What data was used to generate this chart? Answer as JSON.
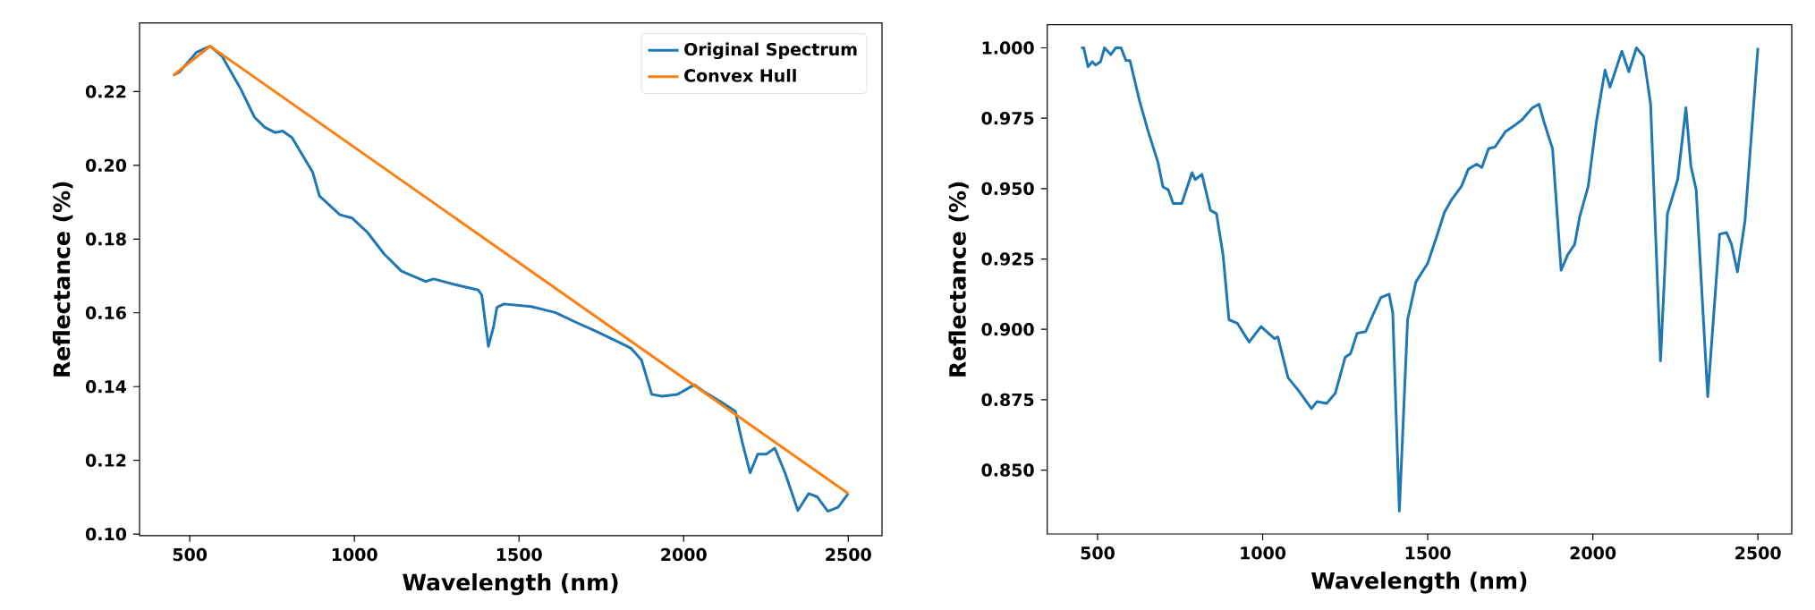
{
  "chart_data": [
    {
      "type": "line",
      "xlabel": "Wavelength (nm)",
      "ylabel": "Reflectance (%)",
      "legend": "top right",
      "xlim": [
        347.5,
        2602.5
      ],
      "ylim": [
        0.0996,
        0.2386
      ],
      "xticks": [
        500,
        1000,
        1500,
        2000,
        2500
      ],
      "yticks": [
        {
          "value": 0.1,
          "label": "0.10"
        },
        {
          "value": 0.12,
          "label": "0.12"
        },
        {
          "value": 0.14,
          "label": "0.14"
        },
        {
          "value": 0.16,
          "label": "0.16"
        },
        {
          "value": 0.18,
          "label": "0.18"
        },
        {
          "value": 0.2,
          "label": "0.20"
        },
        {
          "value": 0.22,
          "label": "0.22"
        }
      ],
      "series": [
        {
          "name": "Original Spectrum",
          "color": "#1f77b4",
          "x": [
            450,
            469,
            521,
            562,
            598,
            656,
            697,
            728,
            759,
            782,
            811,
            842,
            873,
            894,
            956,
            993,
            1039,
            1091,
            1143,
            1216,
            1241,
            1309,
            1376,
            1387,
            1407,
            1423,
            1433,
            1454,
            1537,
            1610,
            1674,
            1734,
            1809,
            1840,
            1872,
            1903,
            1934,
            1981,
            2033,
            2059,
            2111,
            2157,
            2178,
            2202,
            2225,
            2251,
            2277,
            2308,
            2347,
            2380,
            2406,
            2438,
            2469,
            2500
          ],
          "values": [
            0.2244,
            0.2253,
            0.2307,
            0.2323,
            0.2296,
            0.2205,
            0.213,
            0.2103,
            0.2089,
            0.2093,
            0.2075,
            0.2028,
            0.1982,
            0.1917,
            0.1866,
            0.1857,
            0.1819,
            0.1759,
            0.1713,
            0.1685,
            0.1692,
            0.1676,
            0.1662,
            0.1648,
            0.1509,
            0.1564,
            0.1615,
            0.1624,
            0.1617,
            0.1601,
            0.1574,
            0.155,
            0.1518,
            0.1504,
            0.1472,
            0.1379,
            0.1374,
            0.1379,
            0.1405,
            0.1388,
            0.136,
            0.1333,
            0.1249,
            0.1166,
            0.1217,
            0.1217,
            0.1233,
            0.1166,
            0.1064,
            0.111,
            0.1101,
            0.1062,
            0.1073,
            0.111
          ]
        },
        {
          "name": "Convex Hull",
          "color": "#ff7f0e",
          "x": [
            450,
            562,
            2500
          ],
          "values": [
            0.2244,
            0.2323,
            0.111
          ]
        }
      ]
    },
    {
      "type": "line",
      "xlabel": "Wavelength (nm)",
      "ylabel": "Reflectance (%)",
      "xlim": [
        347.5,
        2602.5
      ],
      "ylim": [
        0.8273,
        1.0082
      ],
      "xticks": [
        500,
        1000,
        1500,
        2000,
        2500
      ],
      "yticks": [
        {
          "value": 0.85,
          "label": "0.850"
        },
        {
          "value": 0.875,
          "label": "0.875"
        },
        {
          "value": 0.9,
          "label": "0.900"
        },
        {
          "value": 0.925,
          "label": "0.925"
        },
        {
          "value": 0.95,
          "label": "0.950"
        },
        {
          "value": 0.975,
          "label": "0.975"
        },
        {
          "value": 1.0,
          "label": "1.000"
        }
      ],
      "series": [
        {
          "color": "#1f77b4",
          "x": [
            450,
            458,
            471,
            484,
            494,
            509,
            521,
            540,
            555,
            571,
            586,
            598,
            627,
            652,
            683,
            698,
            714,
            729,
            755,
            786,
            796,
            816,
            842,
            860,
            880,
            898,
            923,
            959,
            995,
            1036,
            1046,
            1077,
            1107,
            1148,
            1164,
            1194,
            1220,
            1250,
            1266,
            1286,
            1312,
            1332,
            1358,
            1383,
            1394,
            1414,
            1439,
            1464,
            1500,
            1531,
            1551,
            1572,
            1602,
            1623,
            1648,
            1664,
            1684,
            1704,
            1735,
            1766,
            1786,
            1817,
            1837,
            1853,
            1878,
            1904,
            1924,
            1945,
            1960,
            1986,
            2011,
            2037,
            2052,
            2088,
            2109,
            2132,
            2154,
            2175,
            2205,
            2226,
            2257,
            2282,
            2297,
            2313,
            2348,
            2384,
            2405,
            2420,
            2438,
            2461,
            2500
          ],
          "values": [
            1.0,
            1.0,
            0.9933,
            0.9951,
            0.9939,
            0.9951,
            1.0,
            0.9976,
            1.0,
            1.0,
            0.9955,
            0.9955,
            0.9812,
            0.9708,
            0.9593,
            0.9506,
            0.9496,
            0.9447,
            0.9447,
            0.9557,
            0.9532,
            0.9551,
            0.9423,
            0.9411,
            0.9265,
            0.9034,
            0.9022,
            0.8955,
            0.901,
            0.8967,
            0.8973,
            0.8828,
            0.8785,
            0.8718,
            0.8743,
            0.8737,
            0.8773,
            0.8901,
            0.8913,
            0.8986,
            0.8992,
            0.9046,
            0.9113,
            0.9125,
            0.9059,
            0.8354,
            0.9034,
            0.9168,
            0.9235,
            0.9344,
            0.9417,
            0.946,
            0.9508,
            0.9569,
            0.9587,
            0.9575,
            0.9642,
            0.9648,
            0.9702,
            0.9727,
            0.9745,
            0.9787,
            0.98,
            0.9733,
            0.9642,
            0.921,
            0.9265,
            0.9302,
            0.9399,
            0.9508,
            0.9739,
            0.9921,
            0.986,
            0.9988,
            0.9915,
            1.0,
            0.997,
            0.98,
            0.8888,
            0.9411,
            0.9532,
            0.9787,
            0.958,
            0.9496,
            0.8761,
            0.9338,
            0.9344,
            0.9302,
            0.9204,
            0.9387,
            1.0
          ]
        }
      ]
    }
  ]
}
